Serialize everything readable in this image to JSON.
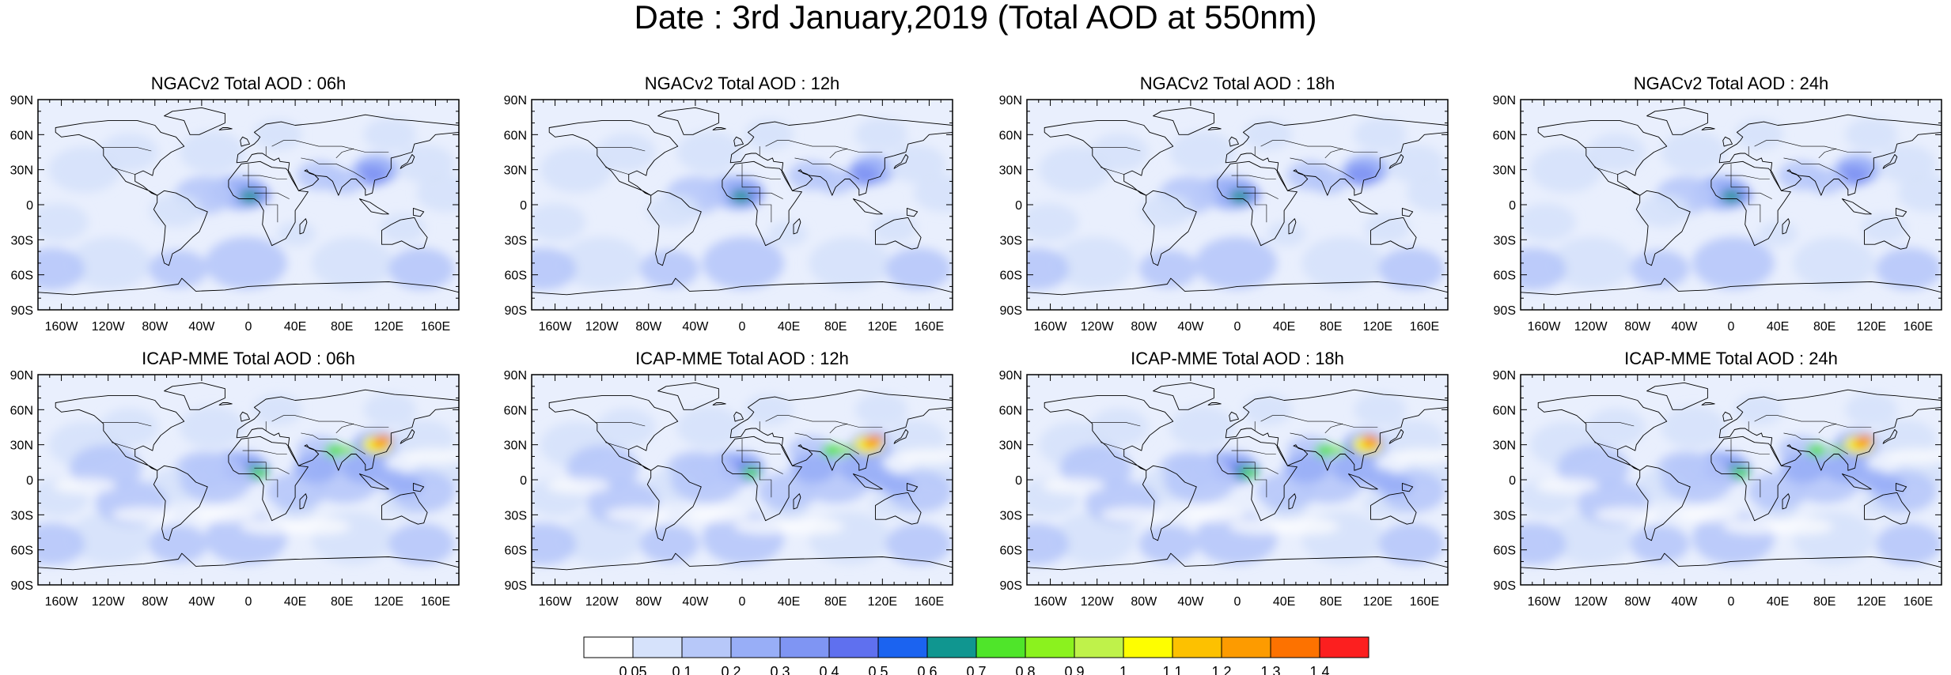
{
  "title": "Date : 3rd January,2019 (Total AOD at 550nm)",
  "panels": [
    {
      "title": "NGACv2 Total AOD : 06h",
      "model": "NGACv2",
      "hour": "06h"
    },
    {
      "title": "NGACv2 Total AOD : 12h",
      "model": "NGACv2",
      "hour": "12h"
    },
    {
      "title": "NGACv2 Total AOD : 18h",
      "model": "NGACv2",
      "hour": "18h"
    },
    {
      "title": "NGACv2 Total AOD : 24h",
      "model": "NGACv2",
      "hour": "24h"
    },
    {
      "title": "ICAP-MME Total AOD : 06h",
      "model": "ICAP-MME",
      "hour": "06h"
    },
    {
      "title": "ICAP-MME Total AOD : 12h",
      "model": "ICAP-MME",
      "hour": "12h"
    },
    {
      "title": "ICAP-MME Total AOD : 18h",
      "model": "ICAP-MME",
      "hour": "18h"
    },
    {
      "title": "ICAP-MME Total AOD : 24h",
      "model": "ICAP-MME",
      "hour": "24h"
    }
  ],
  "lat_ticks": [
    "90N",
    "60N",
    "30N",
    "0",
    "30S",
    "60S",
    "90S"
  ],
  "lon_ticks": [
    "160W",
    "120W",
    "80W",
    "40W",
    "0",
    "40E",
    "80E",
    "120E",
    "160E"
  ],
  "colorbar": {
    "labels": [
      "0.05",
      "0.1",
      "0.2",
      "0.3",
      "0.4",
      "0.5",
      "0.6",
      "0.7",
      "0.8",
      "0.9",
      "1",
      "1.1",
      "1.2",
      "1.3",
      "1.4"
    ],
    "colors": [
      "#ffffff",
      "#d6e2fb",
      "#b7c8f9",
      "#98aef7",
      "#7f95f3",
      "#5f70ef",
      "#1b63f0",
      "#109690",
      "#4fe52a",
      "#8bf21e",
      "#bff24a",
      "#fefe00",
      "#fdc100",
      "#fd9b00",
      "#fd7200",
      "#fc1f1f"
    ]
  }
}
